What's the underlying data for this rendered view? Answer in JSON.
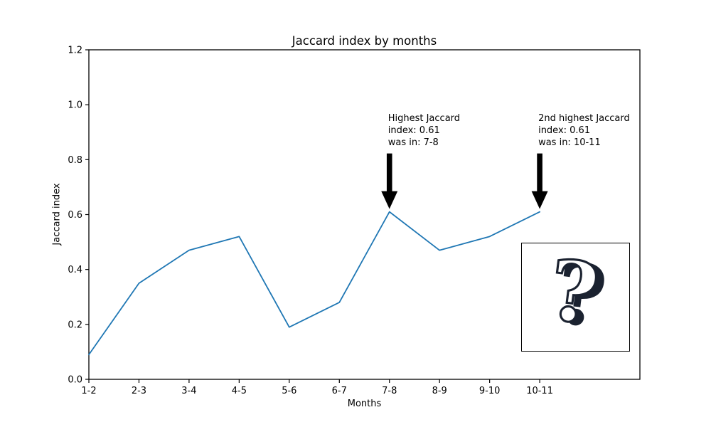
{
  "chart_data": {
    "type": "line",
    "title": "Jaccard index by months",
    "xlabel": "Months",
    "ylabel": "Jaccard index",
    "categories": [
      "1-2",
      "2-3",
      "3-4",
      "4-5",
      "5-6",
      "6-7",
      "7-8",
      "8-9",
      "9-10",
      "10-11"
    ],
    "values": [
      0.09,
      0.35,
      0.47,
      0.52,
      0.19,
      0.28,
      0.61,
      0.47,
      0.52,
      0.61
    ],
    "y_ticks": [
      "0.0",
      "0.2",
      "0.4",
      "0.6",
      "0.8",
      "1.0",
      "1.2"
    ],
    "ylim": [
      0,
      1.2
    ],
    "xlim_slots": 11,
    "grid": false,
    "legend": "none",
    "line_color": "#1f77b4",
    "axis_color": "#000000",
    "annotations": [
      {
        "lines": [
          "Highest Jaccard",
          "index: 0.61",
          "was in: 7-8"
        ],
        "target_category": "7-8",
        "target_value": 0.61,
        "arrow_color": "#000000"
      },
      {
        "lines": [
          "2nd highest Jaccard",
          "index: 0.61",
          "was in: 10-11"
        ],
        "target_category": "10-11",
        "target_value": 0.61,
        "arrow_color": "#000000"
      }
    ],
    "inset": {
      "glyph": "?",
      "icon_color": "#1b2230"
    }
  }
}
